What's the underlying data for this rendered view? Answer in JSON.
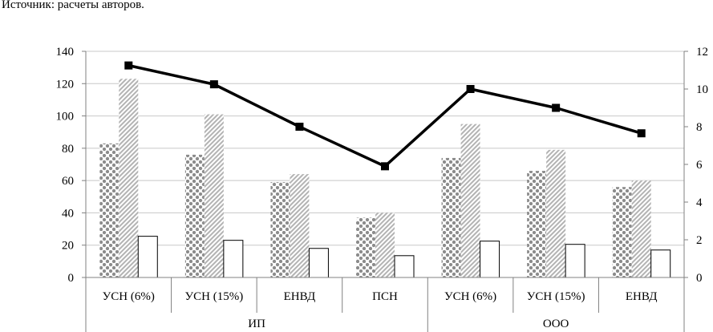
{
  "source_note": "Источник: расчеты авторов.",
  "chart_data": {
    "type": "bar",
    "title": "",
    "xlabel": "",
    "ylabel": "",
    "categories": [
      "УСН (6%)",
      "УСН (15%)",
      "ЕНВД",
      "ПСН",
      "УСН (6%)",
      "УСН (15%)",
      "ЕНВД"
    ],
    "groups": [
      {
        "label": "ИП",
        "span": [
          0,
          3
        ]
      },
      {
        "label": "ООО",
        "span": [
          4,
          6
        ]
      }
    ],
    "ylim_left": [
      0,
      140
    ],
    "yticks_left": [
      "0",
      "20",
      "40",
      "60",
      "80",
      "100",
      "120",
      "140"
    ],
    "ylim_right": [
      0,
      12
    ],
    "yticks_right": [
      "0",
      "2",
      "4",
      "6",
      "8",
      "10",
      "12"
    ],
    "grid": "horizontal",
    "series": [
      {
        "axis": "left",
        "style": "dotted-pattern",
        "values": [
          83,
          76,
          59,
          37,
          74,
          66,
          56
        ]
      },
      {
        "axis": "left",
        "style": "diagonal-hatch",
        "values": [
          123,
          101,
          64,
          40,
          95,
          79,
          60
        ]
      },
      {
        "axis": "left",
        "style": "white-fill",
        "values": [
          25.5,
          23,
          18,
          13.5,
          22.5,
          20.5,
          17
        ]
      },
      {
        "axis": "right",
        "type": "line",
        "marker": "square",
        "values": [
          11.25,
          10.25,
          8.0,
          5.9,
          10.0,
          9.0,
          7.65
        ]
      }
    ],
    "colors": {
      "line": "#000000",
      "grid": "#c8c8c8",
      "dots": "#8c8c8c",
      "hatch": "#b3b3b3"
    }
  }
}
